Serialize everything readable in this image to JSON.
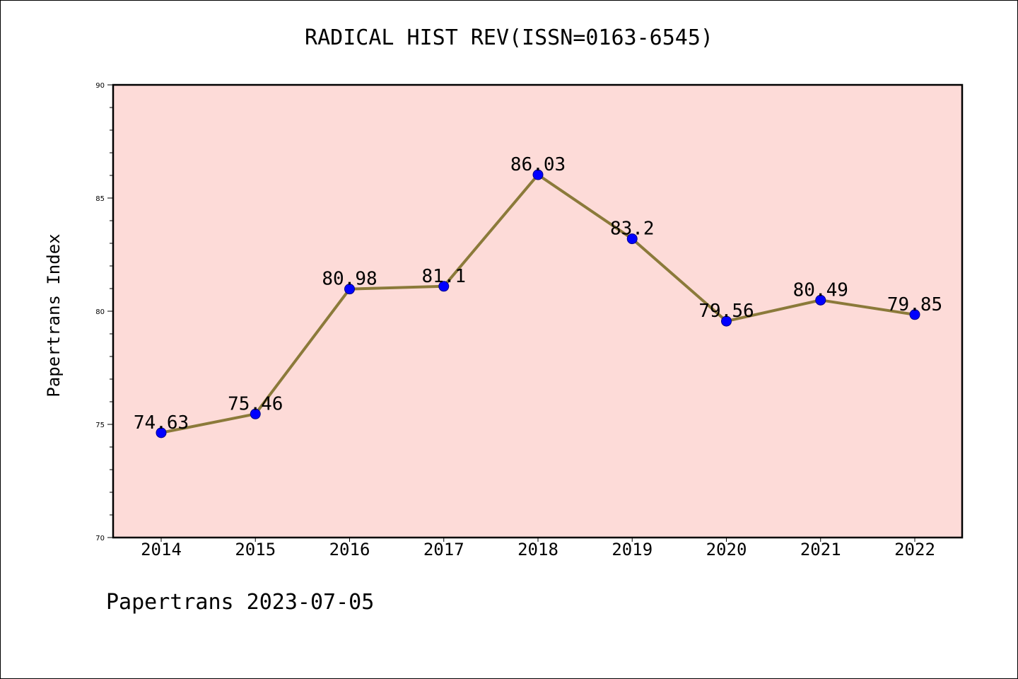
{
  "title": "RADICAL HIST REV(ISSN=0163-6545)",
  "footer": "Papertrans 2023-07-05",
  "chart_data": {
    "type": "line",
    "title": "RADICAL HIST REV(ISSN=0163-6545)",
    "xlabel": "",
    "ylabel": "Papertrans Index",
    "categories": [
      "2014",
      "2015",
      "2016",
      "2017",
      "2018",
      "2019",
      "2020",
      "2021",
      "2022"
    ],
    "values": [
      74.63,
      75.46,
      80.98,
      81.1,
      86.03,
      83.2,
      79.56,
      80.49,
      79.85
    ],
    "data_labels": [
      "74.63",
      "75.46",
      "80.98",
      "81.1",
      "86.03",
      "83.2",
      "79.56",
      "80.49",
      "79.85"
    ],
    "ylim": [
      70,
      90
    ],
    "yticks": [
      70,
      75,
      80,
      85,
      90
    ],
    "grid": false,
    "colors": {
      "plot_background": "#fddbd8",
      "line": "#8b7a3a",
      "marker": "#0000ff",
      "marker_edge": "#00008b"
    }
  }
}
